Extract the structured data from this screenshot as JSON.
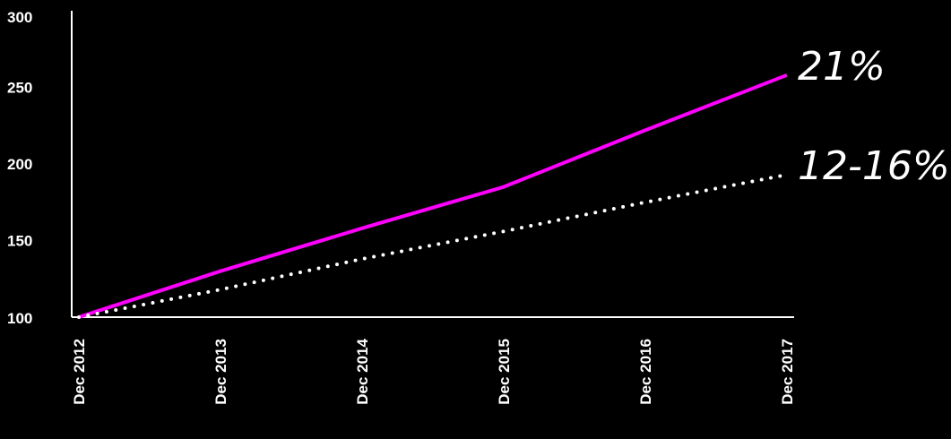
{
  "chart_data": {
    "type": "line",
    "title": "",
    "xlabel": "",
    "ylabel": "",
    "categories": [
      "Dec 2012",
      "Dec 2013",
      "Dec 2014",
      "Dec 2015",
      "Dec 2016",
      "Dec 2017"
    ],
    "ylim": [
      100,
      300
    ],
    "yticks": [
      "100",
      "150",
      "200",
      "250",
      "300"
    ],
    "grid": false,
    "legend": "none",
    "series": [
      {
        "annotation": "21%",
        "color": "#ff00ff",
        "style": "solid",
        "values": [
          100,
          130,
          158,
          185,
          222,
          258
        ]
      },
      {
        "annotation": "12-16%",
        "color": "#ffffff",
        "style": "dotted",
        "values": [
          100,
          118,
          138,
          156,
          175,
          193
        ]
      }
    ]
  }
}
